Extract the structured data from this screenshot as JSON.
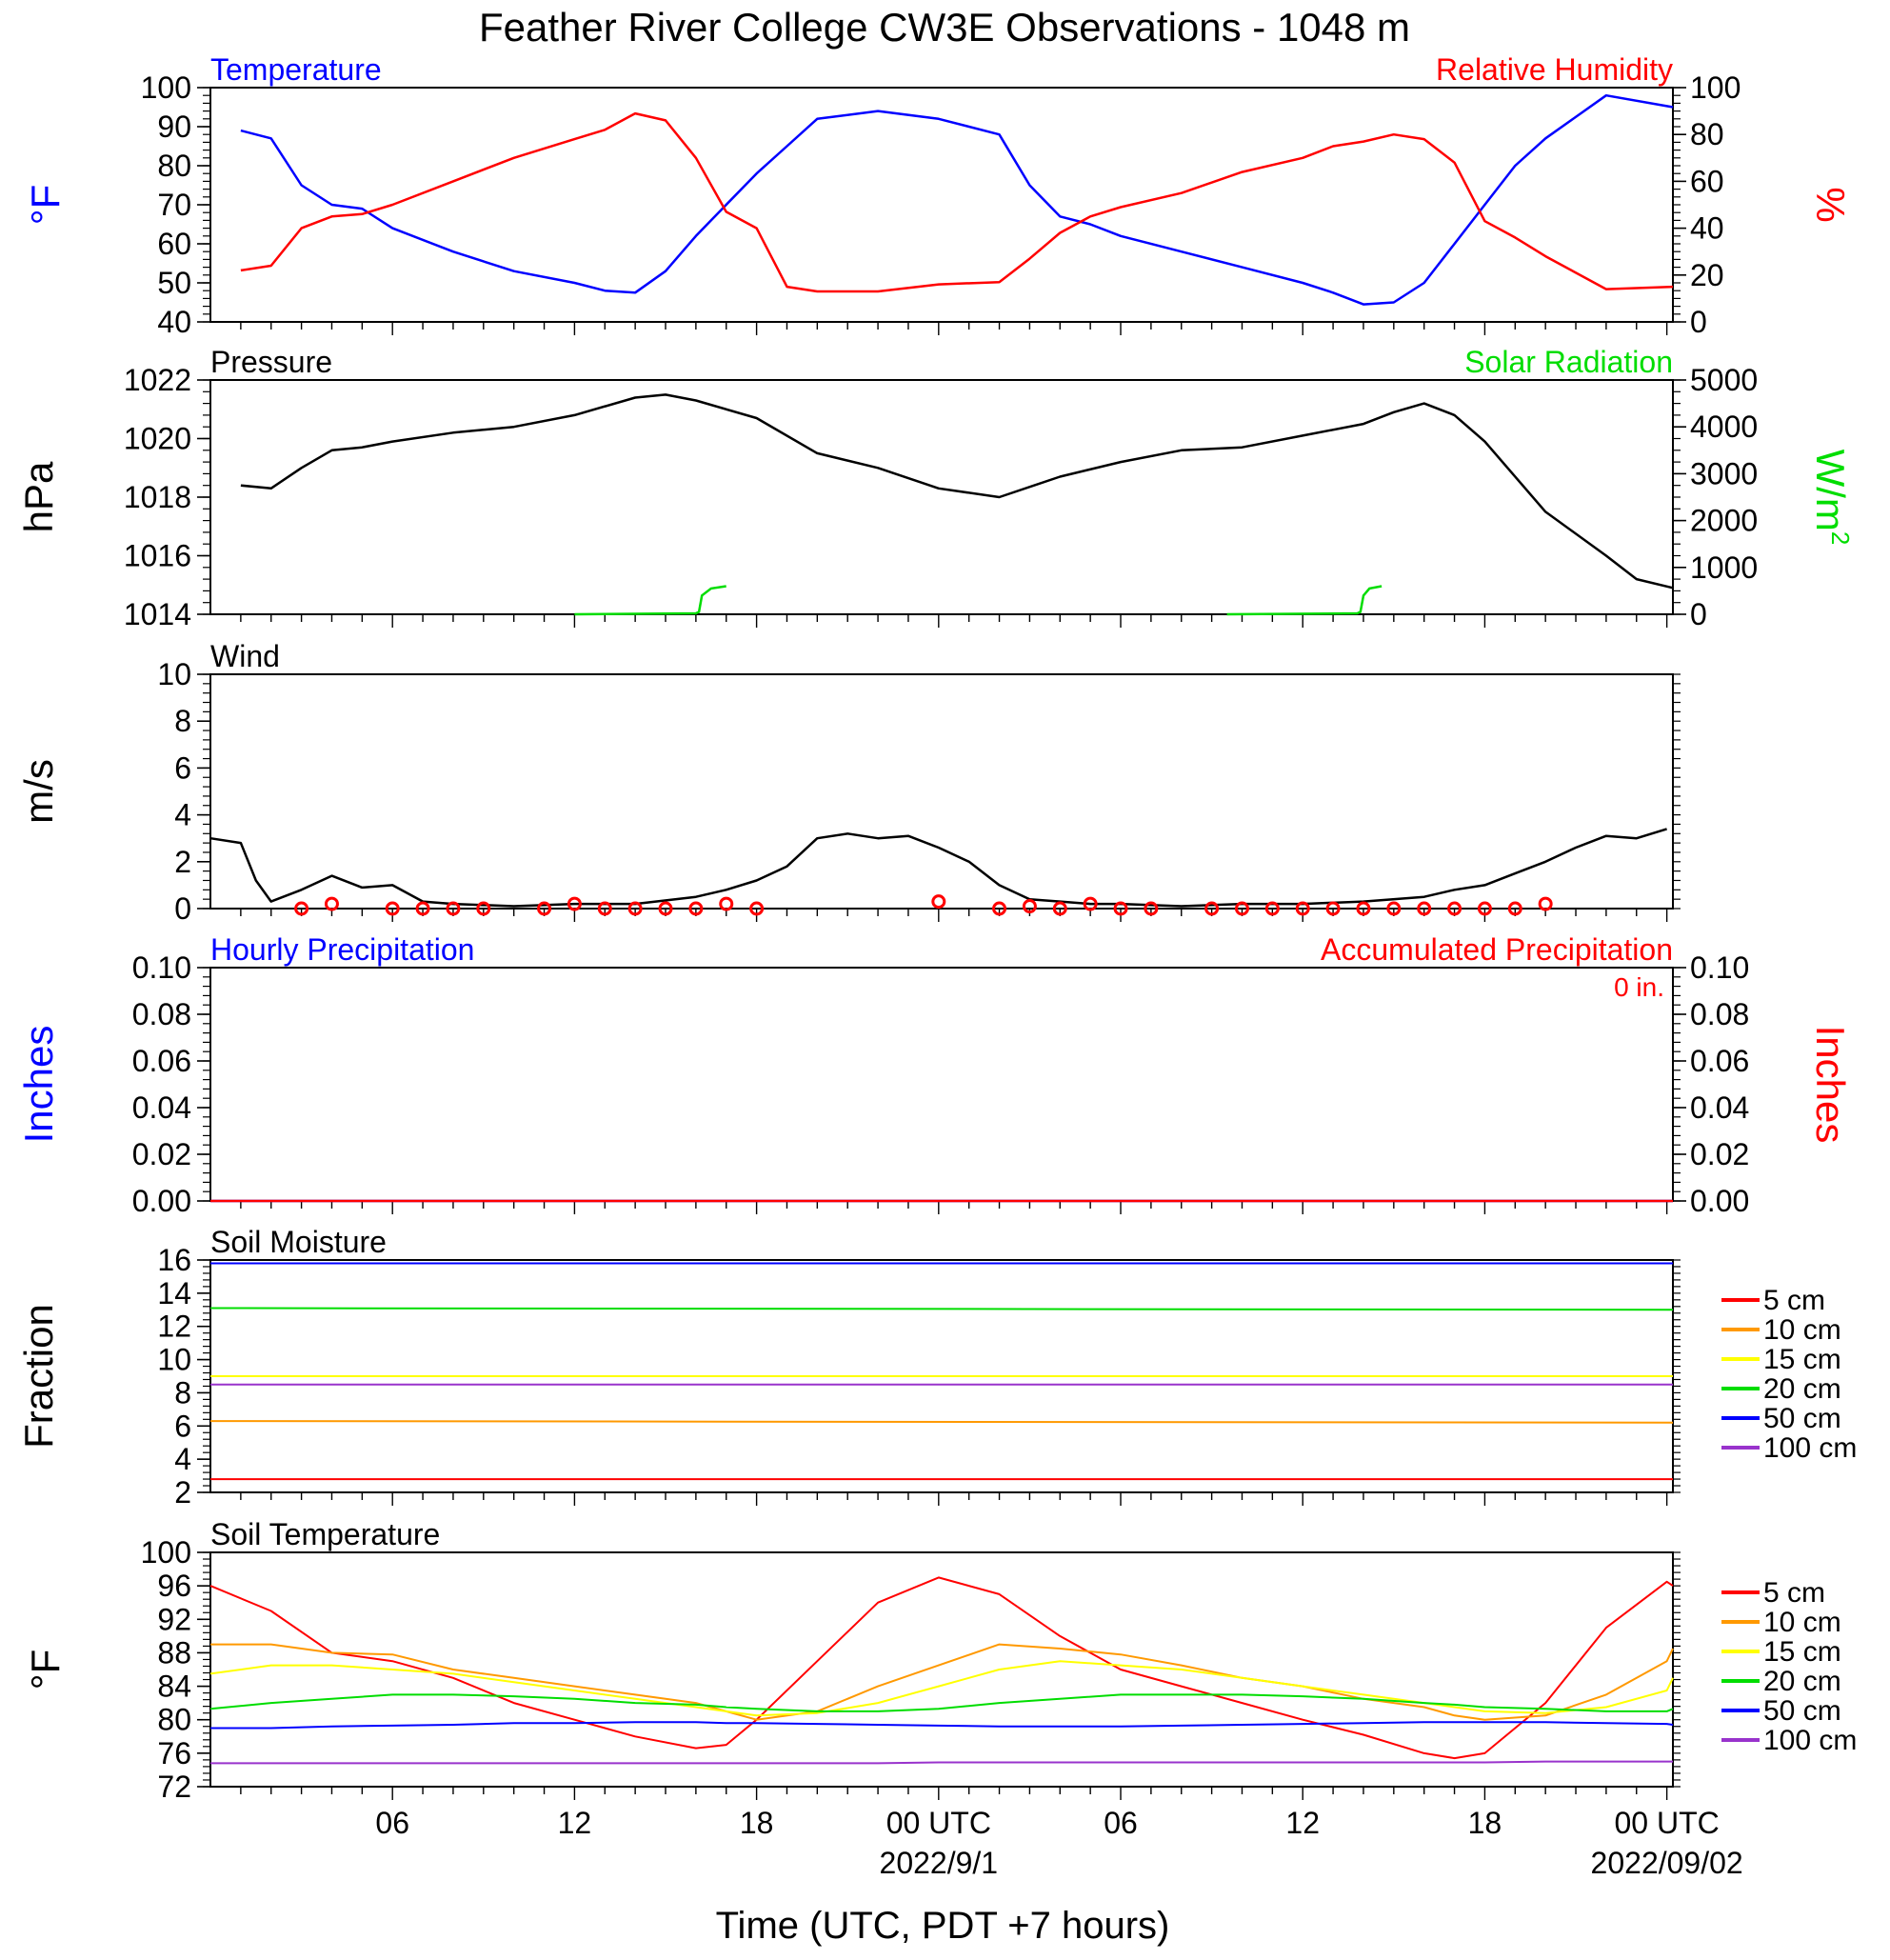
{
  "title": "Feather River College CW3E Observations - 1048 m",
  "x_axis": {
    "label": "Time (UTC, PDT +7 hours)",
    "tick_labels": [
      "06",
      "12",
      "18",
      "00 UTC",
      "06",
      "12",
      "18",
      "00 UTC"
    ],
    "date_labels": [
      "2022/9/1",
      "2022/09/02"
    ]
  },
  "colors": {
    "blue": "#0000ff",
    "red": "#ff0000",
    "green": "#00dd00",
    "black": "#000000",
    "orange": "#ff9900",
    "yellow": "#ffff00",
    "purple": "#9933cc"
  },
  "chart_data": [
    {
      "type": "line",
      "title_left": "Temperature",
      "title_right": "Relative Humidity",
      "ylabel_left": "°F",
      "ylabel_right": "%",
      "ylim_left": [
        40,
        100
      ],
      "ylim_right": [
        0,
        100
      ],
      "yticks_left": [
        "100",
        "90",
        "80",
        "70",
        "60",
        "50",
        "40"
      ],
      "yticks_right": [
        "100",
        "80",
        "60",
        "40",
        "20",
        "0"
      ],
      "x_hours": [
        1,
        2,
        3,
        4,
        5,
        6,
        8,
        10,
        12,
        13,
        14,
        15,
        16,
        17,
        18,
        19,
        20,
        22,
        24,
        26,
        27,
        28,
        29,
        30,
        32,
        34,
        36,
        37,
        38,
        39,
        40,
        41,
        42,
        43,
        44,
        46,
        48.2
      ],
      "series": [
        {
          "name": "Temperature",
          "axis": "left",
          "color": "blue",
          "values": [
            89,
            87,
            75,
            70,
            69,
            64,
            58,
            53,
            50,
            48,
            47.5,
            53,
            62,
            70,
            78,
            85,
            92,
            94,
            92,
            88,
            75,
            67,
            65,
            62,
            58,
            54,
            50,
            47.5,
            44.5,
            45,
            50,
            60,
            70,
            80,
            87,
            98,
            95
          ]
        },
        {
          "name": "Relative Humidity",
          "axis": "right",
          "color": "red",
          "values": [
            22,
            24,
            40,
            45,
            46,
            50,
            60,
            70,
            78,
            82,
            89,
            86,
            70,
            47,
            40,
            15,
            13,
            13,
            16,
            17,
            27,
            38,
            45,
            49,
            55,
            64,
            70,
            75,
            77,
            80,
            78,
            68,
            43,
            36,
            28,
            14,
            15
          ]
        }
      ]
    },
    {
      "type": "line",
      "title_left": "Pressure",
      "title_right": "Solar Radiation",
      "ylabel_left": "hPa",
      "ylabel_right": "W/m",
      "ylabel_right_sup": "2",
      "ylim_left": [
        1014,
        1022
      ],
      "ylim_right": [
        0,
        5000
      ],
      "yticks_left": [
        "1022",
        "1020",
        "1018",
        "1016",
        "1014"
      ],
      "yticks_right": [
        "5000",
        "4000",
        "3000",
        "2000",
        "1000",
        "0"
      ],
      "x_hours": [
        1,
        2,
        3,
        4,
        5,
        6,
        8,
        10,
        12,
        14,
        15,
        16,
        18,
        20,
        22,
        24,
        26,
        28,
        30,
        32,
        34,
        36,
        38,
        39,
        40,
        41,
        42,
        44,
        46,
        47,
        48.2
      ],
      "series": [
        {
          "name": "Pressure",
          "axis": "left",
          "color": "black",
          "values": [
            1018.4,
            1018.3,
            1019,
            1019.6,
            1019.7,
            1019.9,
            1020.2,
            1020.4,
            1020.8,
            1021.4,
            1021.5,
            1021.3,
            1020.7,
            1019.5,
            1019.0,
            1018.3,
            1018.0,
            1018.7,
            1019.2,
            1019.6,
            1019.7,
            1020.1,
            1020.5,
            1020.9,
            1021.2,
            1020.8,
            1019.9,
            1017.5,
            1016.0,
            1015.2,
            1014.9
          ]
        },
        {
          "name": "Solar Radiation",
          "axis": "right",
          "color": "green",
          "segments": [
            {
              "x_hours": [
                12,
                16,
                16.1,
                16.2,
                16.5,
                17.0
              ],
              "values": [
                0,
                20,
                50,
                400,
                550,
                600
              ]
            },
            {
              "x_hours": [
                33.5,
                37.8,
                37.9,
                38.0,
                38.2,
                38.6
              ],
              "values": [
                0,
                20,
                50,
                400,
                550,
                600
              ]
            }
          ]
        }
      ]
    },
    {
      "type": "line",
      "title_left": "Wind",
      "ylabel_left": "m/s",
      "ylim_left": [
        0,
        10
      ],
      "yticks_left": [
        "10",
        "8",
        "6",
        "4",
        "2",
        "0"
      ],
      "x_hours": [
        0,
        1,
        1.5,
        2,
        3,
        4,
        5,
        6,
        7,
        8,
        10,
        12,
        14,
        16,
        17,
        18,
        19,
        20,
        21,
        22,
        23,
        24,
        25,
        26,
        27,
        28,
        29,
        30,
        32,
        34,
        36,
        38,
        40,
        41,
        42,
        43,
        44,
        45,
        46,
        47,
        48
      ],
      "series": [
        {
          "name": "Wind Speed",
          "color": "black",
          "values": [
            3.0,
            2.8,
            1.2,
            0.3,
            0.8,
            1.4,
            0.9,
            1.0,
            0.3,
            0.2,
            0.1,
            0.2,
            0.2,
            0.5,
            0.8,
            1.2,
            1.8,
            3.0,
            3.2,
            3.0,
            3.1,
            2.6,
            2.0,
            1.0,
            0.4,
            0.3,
            0.2,
            0.2,
            0.1,
            0.2,
            0.2,
            0.3,
            0.5,
            0.8,
            1.0,
            1.5,
            2.0,
            2.6,
            3.1,
            3.0,
            3.4
          ]
        }
      ],
      "circle_x_hours": [
        3,
        4,
        6,
        7,
        8,
        9,
        11,
        12,
        13,
        14,
        15,
        16,
        17,
        18,
        24,
        26,
        27,
        28,
        29,
        30,
        31,
        33,
        34,
        35,
        36,
        37,
        38,
        39,
        40,
        41,
        42,
        43,
        44
      ],
      "circle_values": [
        0,
        0.2,
        0,
        0,
        0,
        0,
        0,
        0.2,
        0,
        0,
        0,
        0,
        0.2,
        0,
        0.3,
        0,
        0.1,
        0,
        0.2,
        0,
        0,
        0,
        0,
        0,
        0,
        0,
        0,
        0,
        0,
        0,
        0,
        0,
        0.2
      ]
    },
    {
      "type": "line",
      "title_left": "Hourly Precipitation",
      "title_right": "Accumulated Precipitation",
      "annotation": "0 in.",
      "ylabel_left": "Inches",
      "ylabel_right": "Inches",
      "ylim_left": [
        0,
        0.1
      ],
      "ylim_right": [
        0,
        0.1
      ],
      "yticks_left": [
        "0.10",
        "0.08",
        "0.06",
        "0.04",
        "0.02",
        "0.00"
      ],
      "yticks_right": [
        "0.10",
        "0.08",
        "0.06",
        "0.04",
        "0.02",
        "0.00"
      ],
      "x_hours": [
        0,
        48.2
      ],
      "series": [
        {
          "name": "Hourly Precipitation",
          "color": "blue",
          "values": [
            0,
            0
          ]
        },
        {
          "name": "Accumulated Precipitation",
          "color": "red",
          "values": [
            0,
            0
          ]
        }
      ]
    },
    {
      "type": "line",
      "title_left": "Soil Moisture",
      "ylabel_left": "Fraction",
      "ylim_left": [
        2,
        16
      ],
      "yticks_left": [
        "16",
        "14",
        "12",
        "10",
        "8",
        "6",
        "4",
        "2"
      ],
      "x_hours": [
        0,
        48.2
      ],
      "legend_position": "right",
      "series": [
        {
          "name": "5 cm",
          "color": "red",
          "values": [
            2.8,
            2.8
          ]
        },
        {
          "name": "10 cm",
          "color": "orange",
          "values": [
            6.3,
            6.2
          ]
        },
        {
          "name": "15 cm",
          "color": "yellow",
          "values": [
            9.0,
            9.0
          ]
        },
        {
          "name": "20 cm",
          "color": "green",
          "values": [
            13.1,
            13.0
          ]
        },
        {
          "name": "50 cm",
          "color": "blue",
          "values": [
            15.8,
            15.8
          ]
        },
        {
          "name": "100 cm",
          "color": "purple",
          "values": [
            8.5,
            8.5
          ]
        }
      ]
    },
    {
      "type": "line",
      "title_left": "Soil Temperature",
      "ylabel_left": "°F",
      "ylim_left": [
        72,
        100
      ],
      "yticks_left": [
        "100",
        "96",
        "92",
        "88",
        "84",
        "80",
        "76",
        "72"
      ],
      "x_hours": [
        0,
        2,
        4,
        6,
        8,
        10,
        12,
        14,
        16,
        17,
        18,
        20,
        22,
        24,
        26,
        28,
        30,
        32,
        34,
        36,
        38,
        40,
        41,
        42,
        44,
        46,
        48,
        48.2
      ],
      "legend_position": "right",
      "series": [
        {
          "name": "5 cm",
          "color": "red",
          "values": [
            96,
            93,
            88,
            87,
            85,
            82,
            80,
            78,
            76.6,
            77,
            80,
            87,
            94,
            97,
            95,
            90,
            86,
            84,
            82,
            80,
            78.2,
            76,
            75.4,
            76,
            82,
            91,
            96.5,
            96
          ]
        },
        {
          "name": "10 cm",
          "color": "orange",
          "values": [
            89,
            89,
            88,
            87.8,
            86,
            85,
            84,
            83,
            82,
            81,
            80,
            81,
            84,
            86.5,
            89,
            88.5,
            87.8,
            86.5,
            85,
            84,
            82.5,
            81.5,
            80.5,
            80,
            80.5,
            83,
            87,
            88.5
          ]
        },
        {
          "name": "15 cm",
          "color": "yellow",
          "values": [
            85.5,
            86.5,
            86.5,
            86,
            85.5,
            84.5,
            83.5,
            82.5,
            81.5,
            81,
            80.5,
            80.8,
            82,
            84,
            86,
            87,
            86.5,
            86,
            85,
            84,
            83,
            82,
            81.5,
            81,
            80.8,
            81.5,
            83.5,
            85
          ]
        },
        {
          "name": "20 cm",
          "color": "green",
          "values": [
            81.3,
            82,
            82.5,
            83,
            83,
            82.8,
            82.5,
            82,
            81.8,
            81.5,
            81.3,
            81,
            81,
            81.3,
            82,
            82.5,
            83,
            83,
            83,
            82.8,
            82.5,
            82,
            81.8,
            81.5,
            81.3,
            81,
            81,
            81.3
          ]
        },
        {
          "name": "50 cm",
          "color": "blue",
          "values": [
            79,
            79,
            79.2,
            79.3,
            79.4,
            79.6,
            79.6,
            79.7,
            79.7,
            79.6,
            79.6,
            79.5,
            79.4,
            79.3,
            79.2,
            79.2,
            79.2,
            79.3,
            79.4,
            79.5,
            79.6,
            79.7,
            79.7,
            79.7,
            79.7,
            79.6,
            79.5,
            79.4
          ]
        },
        {
          "name": "100 cm",
          "color": "purple",
          "values": [
            74.8,
            74.8,
            74.8,
            74.8,
            74.8,
            74.8,
            74.8,
            74.8,
            74.8,
            74.8,
            74.8,
            74.8,
            74.8,
            74.9,
            74.9,
            74.9,
            74.9,
            74.9,
            74.9,
            74.9,
            74.9,
            74.9,
            74.9,
            74.9,
            75,
            75,
            75,
            75
          ]
        }
      ]
    }
  ]
}
